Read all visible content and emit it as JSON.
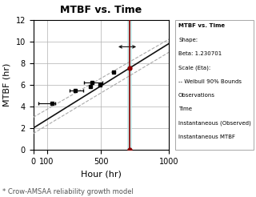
{
  "chart_data": {
    "type": "line",
    "title": "MTBF vs. Time",
    "x_label": "Hour (hr)",
    "y_label": "MTBF (hr)",
    "xlim": [
      0,
      1000
    ],
    "ylim": [
      0,
      12
    ],
    "xticks": [
      0,
      100,
      500,
      1000
    ],
    "yticks": [
      0,
      2,
      4,
      6,
      8,
      10,
      12
    ],
    "grid": true,
    "series": [
      {
        "type": "line",
        "x": [
          0,
          1000
        ],
        "values": [
          3.0,
          10.2
        ],
        "color": "#aaaaaa",
        "line_style": "dashed"
      },
      {
        "type": "line",
        "x": [
          0,
          1000
        ],
        "values": [
          1.5,
          9.0
        ],
        "color": "#aaaaaa",
        "line_style": "dashed"
      },
      {
        "type": "line",
        "x": [
          0,
          1000
        ],
        "values": [
          2.0,
          9.8
        ],
        "color": "#111111",
        "line_style": "solid"
      },
      {
        "type": "errorbar",
        "x": [
          140,
          310,
          430
        ],
        "values": [
          4.3,
          5.5,
          6.2
        ],
        "xerr_low": [
          100,
          40,
          55
        ],
        "xerr_high": [
          20,
          55,
          80
        ],
        "color": "#000000",
        "marker": "square"
      },
      {
        "type": "scatter",
        "x": [
          420,
          490,
          590
        ],
        "values": [
          5.8,
          6.0,
          7.2
        ],
        "color": "#000000",
        "marker": "square"
      },
      {
        "type": "scatter",
        "x": [
          710,
          710
        ],
        "values": [
          0,
          7.538
        ],
        "color": "#8b0000",
        "marker": "circle"
      }
    ],
    "highlight_band": {
      "x": [
        690,
        730
      ],
      "color": "#b8e8e8"
    },
    "vertical_line": {
      "x": 710,
      "color": "#8b0000"
    },
    "arrow": {
      "x": [
        610,
        775
      ],
      "y": 9.5,
      "color": "#111111"
    },
    "legend_panel": {
      "title": "MTBF vs. Time",
      "lines": [
        "Shape:",
        "Beta: 1.230701",
        "Scale (Eta):",
        "-- Weibull 90% Bounds",
        "Observations",
        "Time",
        "Instantaneous (Observed)",
        "Instantaneous MTBF"
      ]
    },
    "footnote": "* Crow-AMSAA reliability growth model"
  }
}
